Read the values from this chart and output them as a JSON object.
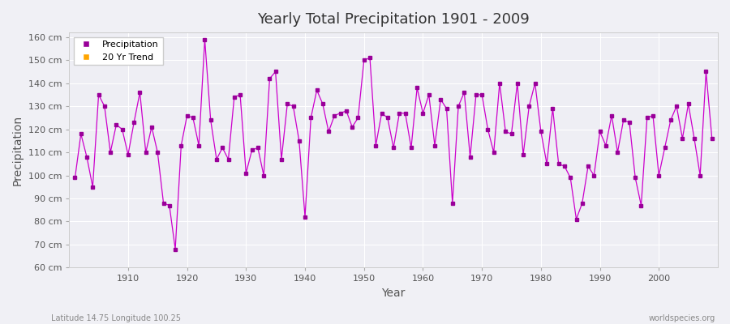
{
  "title": "Yearly Total Precipitation 1901 - 2009",
  "xlabel": "Year",
  "ylabel": "Precipitation",
  "subtitle": "Latitude 14.75 Longitude 100.25",
  "credit": "worldspecies.org",
  "ylim": [
    60,
    162
  ],
  "yticks": [
    60,
    70,
    80,
    90,
    100,
    110,
    120,
    130,
    140,
    150,
    160
  ],
  "ytick_labels": [
    "60 cm",
    "70 cm",
    "80 cm",
    "90 cm",
    "100 cm",
    "110 cm",
    "120 cm",
    "130 cm",
    "140 cm",
    "150 cm",
    "160 cm"
  ],
  "xlim": [
    1900,
    2010
  ],
  "xticks": [
    1910,
    1920,
    1930,
    1940,
    1950,
    1960,
    1970,
    1980,
    1990,
    2000
  ],
  "line_color": "#CC00CC",
  "marker_color": "#990099",
  "trend_color": "#FFA500",
  "bg_color": "#EEEEF4",
  "grid_color": "#FFFFFF",
  "years": [
    1901,
    1902,
    1903,
    1904,
    1905,
    1906,
    1907,
    1908,
    1909,
    1910,
    1911,
    1912,
    1913,
    1914,
    1915,
    1916,
    1917,
    1918,
    1919,
    1920,
    1921,
    1922,
    1923,
    1924,
    1925,
    1926,
    1927,
    1928,
    1929,
    1930,
    1931,
    1932,
    1933,
    1934,
    1935,
    1936,
    1937,
    1938,
    1939,
    1940,
    1941,
    1942,
    1943,
    1944,
    1945,
    1946,
    1947,
    1948,
    1949,
    1950,
    1951,
    1952,
    1953,
    1954,
    1955,
    1956,
    1957,
    1958,
    1959,
    1960,
    1961,
    1962,
    1963,
    1964,
    1965,
    1966,
    1967,
    1968,
    1969,
    1970,
    1971,
    1972,
    1973,
    1974,
    1975,
    1976,
    1977,
    1978,
    1979,
    1980,
    1981,
    1982,
    1983,
    1984,
    1985,
    1986,
    1987,
    1988,
    1989,
    1990,
    1991,
    1992,
    1993,
    1994,
    1995,
    1996,
    1997,
    1998,
    1999,
    2000,
    2001,
    2002,
    2003,
    2004,
    2005,
    2006,
    2007,
    2008,
    2009
  ],
  "precip": [
    99,
    118,
    108,
    95,
    135,
    130,
    110,
    122,
    120,
    109,
    123,
    136,
    110,
    121,
    110,
    88,
    87,
    68,
    113,
    126,
    125,
    113,
    159,
    124,
    107,
    112,
    107,
    134,
    135,
    101,
    111,
    112,
    100,
    142,
    145,
    107,
    131,
    130,
    115,
    82,
    125,
    137,
    131,
    119,
    126,
    127,
    128,
    121,
    125,
    150,
    151,
    113,
    127,
    125,
    112,
    127,
    127,
    112,
    138,
    127,
    135,
    113,
    133,
    129,
    88,
    130,
    136,
    108,
    135,
    135,
    120,
    110,
    140,
    119,
    118,
    140,
    109,
    130,
    140,
    119,
    105,
    129,
    105,
    104,
    99,
    81,
    88,
    104,
    100,
    119,
    113,
    126,
    110,
    124,
    123,
    99,
    87,
    125,
    126,
    100,
    112,
    124,
    130,
    116,
    131,
    116,
    100,
    145,
    116
  ]
}
